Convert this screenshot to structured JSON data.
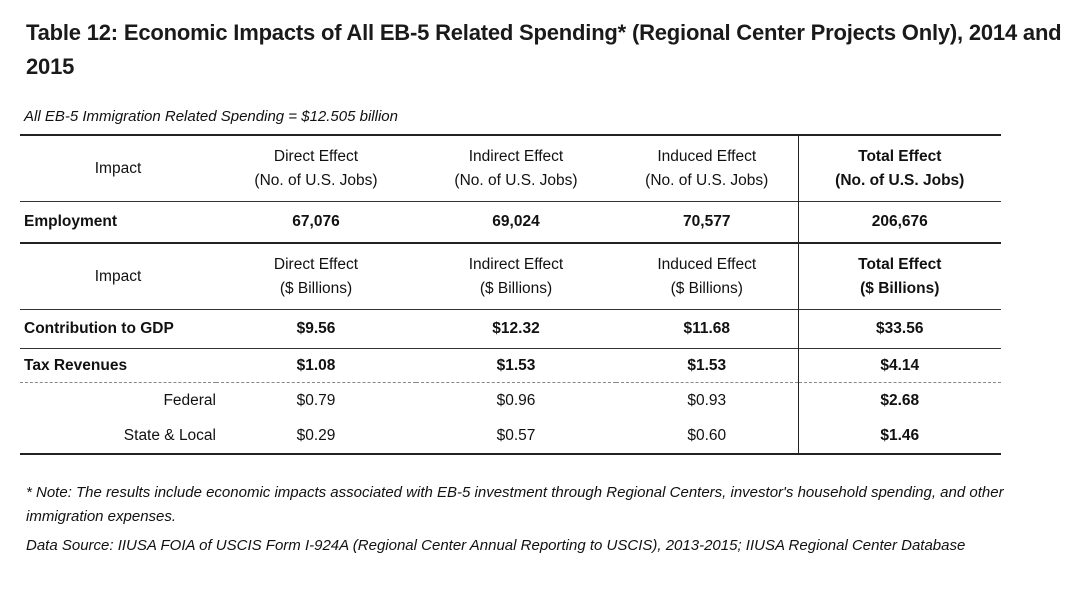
{
  "title": "Table 12: Economic Impacts of All EB-5 Related Spending* (Regional Center Projects Only), 2014 and 2015",
  "subtitle": "All EB-5 Immigration Related Spending = $12.505 billion",
  "jobs_header": {
    "impact": "Impact",
    "direct": [
      "Direct Effect",
      "(No. of U.S. Jobs)"
    ],
    "indirect": [
      "Indirect Effect",
      "(No. of U.S. Jobs)"
    ],
    "induced": [
      "Induced Effect",
      "(No. of U.S. Jobs)"
    ],
    "total": [
      "Total Effect",
      "(No. of U.S. Jobs)"
    ]
  },
  "employment": {
    "label": "Employment",
    "direct": "67,076",
    "indirect": "69,024",
    "induced": "70,577",
    "total": "206,676"
  },
  "dollar_header": {
    "impact": "Impact",
    "direct": [
      "Direct Effect",
      "($ Billions)"
    ],
    "indirect": [
      "Indirect Effect",
      "($ Billions)"
    ],
    "induced": [
      "Induced Effect",
      "($ Billions)"
    ],
    "total": [
      "Total Effect",
      "($ Billions)"
    ]
  },
  "rows": [
    {
      "label": "Contribution to GDP",
      "direct": "$9.56",
      "indirect": "$12.32",
      "induced": "$11.68",
      "total": "$33.56"
    },
    {
      "label": "Tax Revenues",
      "direct": "$1.08",
      "indirect": "$1.53",
      "induced": "$1.53",
      "total": "$4.14"
    },
    {
      "label": "Federal",
      "direct": "$0.79",
      "indirect": "$0.96",
      "induced": "$0.93",
      "total": "$2.68"
    },
    {
      "label": "State & Local",
      "direct": "$0.29",
      "indirect": "$0.57",
      "induced": "$0.60",
      "total": "$1.46"
    }
  ],
  "note": "* Note: The results include economic impacts associated with EB-5 investment through Regional Centers, investor's household spending, and other immigration expenses.",
  "source": "Data Source: IIUSA FOIA of USCIS Form I-924A (Regional Center Annual Reporting to USCIS), 2013-2015; IIUSA Regional Center Database"
}
